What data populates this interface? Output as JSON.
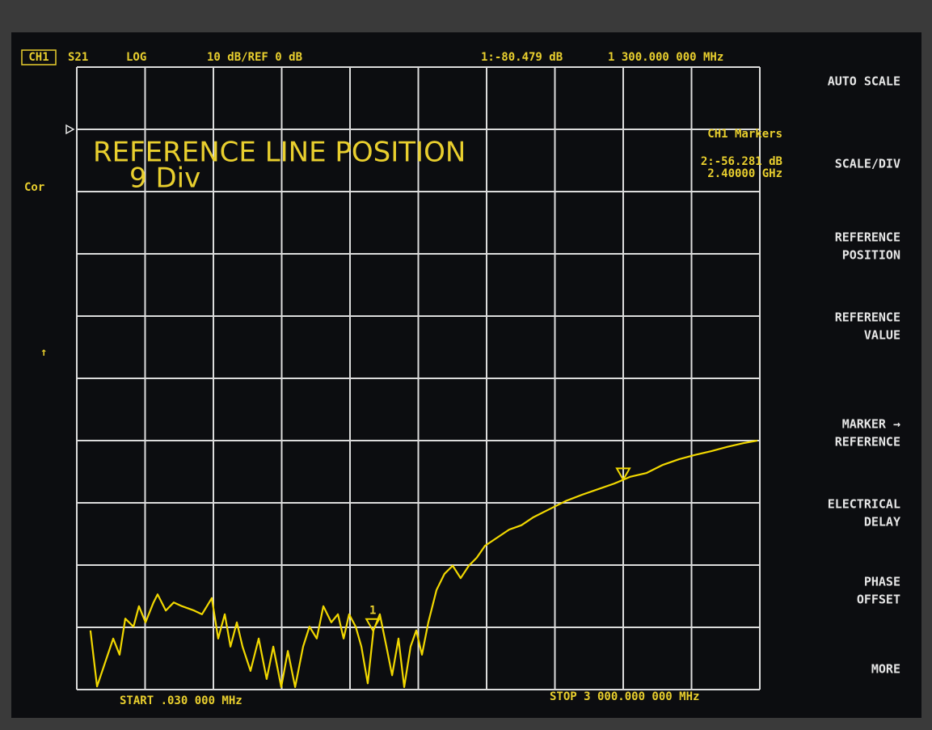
{
  "screen": {
    "channel": "CH1",
    "parameter": "S21",
    "format": "LOG",
    "scale": "10 dB/REF 0 dB",
    "marker1_value": "1:-80.479 dB",
    "marker1_freq": "1 300.000 000 MHz",
    "prompt_title": "REFERENCE LINE POSITION",
    "prompt_value": "9 Div",
    "markers_title": "CH1 Markers",
    "marker2_value": "2:-56.281 dB",
    "marker2_freq": "2.40000 GHz",
    "cor": "Cor",
    "arrow": "↑",
    "start": "START .030 000 MHz",
    "stop": "STOP 3 000.000 000 MHz",
    "softkeys": [
      [
        "AUTO SCALE"
      ],
      [
        "SCALE/DIV"
      ],
      [
        "REFERENCE",
        "POSITION"
      ],
      [
        "REFERENCE",
        "VALUE"
      ],
      [
        "MARKER →",
        "REFERENCE"
      ],
      [
        "ELECTRICAL",
        "DELAY"
      ],
      [
        "PHASE",
        "OFFSET"
      ],
      [
        "MORE"
      ]
    ]
  },
  "chart_data": {
    "type": "line",
    "x": [
      60,
      89,
      124,
      160,
      188,
      213,
      249,
      273,
      302,
      337,
      355,
      391,
      426,
      462,
      515,
      550,
      593,
      621,
      650,
      675,
      703,
      728,
      763,
      799,
      834,
      863,
      898,
      927,
      959,
      994,
      1022,
      1054,
      1083,
      1118,
      1147,
      1172,
      1196,
      1225,
      1250,
      1278,
      1303,
      1331,
      1360,
      1385,
      1413,
      1438,
      1466,
      1491,
      1516,
      1544,
      1580,
      1615,
      1651,
      1686,
      1722,
      1757,
      1793,
      1846,
      1899,
      1953,
      2006,
      2077,
      2148,
      2219,
      2290,
      2361,
      2432,
      2503,
      2574,
      2645,
      2716,
      2787,
      2858,
      2929,
      2989
    ],
    "series": [
      {
        "color": "#f2d800",
        "values": [
          -80.5,
          -89.5,
          -85.7,
          -81.8,
          -84.4,
          -78.6,
          -79.9,
          -76.6,
          -79.2,
          -76.0,
          -74.7,
          -77.3,
          -76.0,
          -76.6,
          -77.3,
          -77.9,
          -75.3,
          -81.8,
          -77.9,
          -83.1,
          -79.2,
          -83.1,
          -87.0,
          -81.8,
          -88.3,
          -83.1,
          -89.6,
          -83.8,
          -89.6,
          -83.1,
          -79.9,
          -81.8,
          -76.6,
          -79.2,
          -77.9,
          -81.8,
          -77.9,
          -79.9,
          -83.1,
          -89.0,
          -80.5,
          -77.9,
          -83.1,
          -87.7,
          -81.8,
          -89.6,
          -83.1,
          -80.5,
          -84.4,
          -79.2,
          -74.0,
          -71.4,
          -70.1,
          -72.1,
          -70.1,
          -68.8,
          -66.9,
          -65.6,
          -64.3,
          -63.6,
          -62.3,
          -61.0,
          -59.7,
          -58.7,
          -57.8,
          -56.9,
          -55.8,
          -55.2,
          -53.9,
          -53.0,
          -52.3,
          -51.7,
          -51.0,
          -50.4,
          -50.0
        ]
      }
    ],
    "markers": [
      {
        "label": "1",
        "x": 1300,
        "value": -80.479
      },
      {
        "x": 2400,
        "value": -56.281
      }
    ],
    "reference_level": 0,
    "xlim": [
      0.03,
      3000
    ],
    "ylim": [
      -90,
      10
    ],
    "xticks": [
      0.03,
      300.027,
      600.024,
      900.021,
      1200.018,
      1500.015,
      1800.012,
      2100.009,
      2400.006,
      2700.003,
      3000
    ],
    "yticks": [
      -90,
      -80,
      -70,
      -60,
      -50,
      -40,
      -30,
      -20,
      -10,
      0,
      10
    ],
    "grid": true
  }
}
